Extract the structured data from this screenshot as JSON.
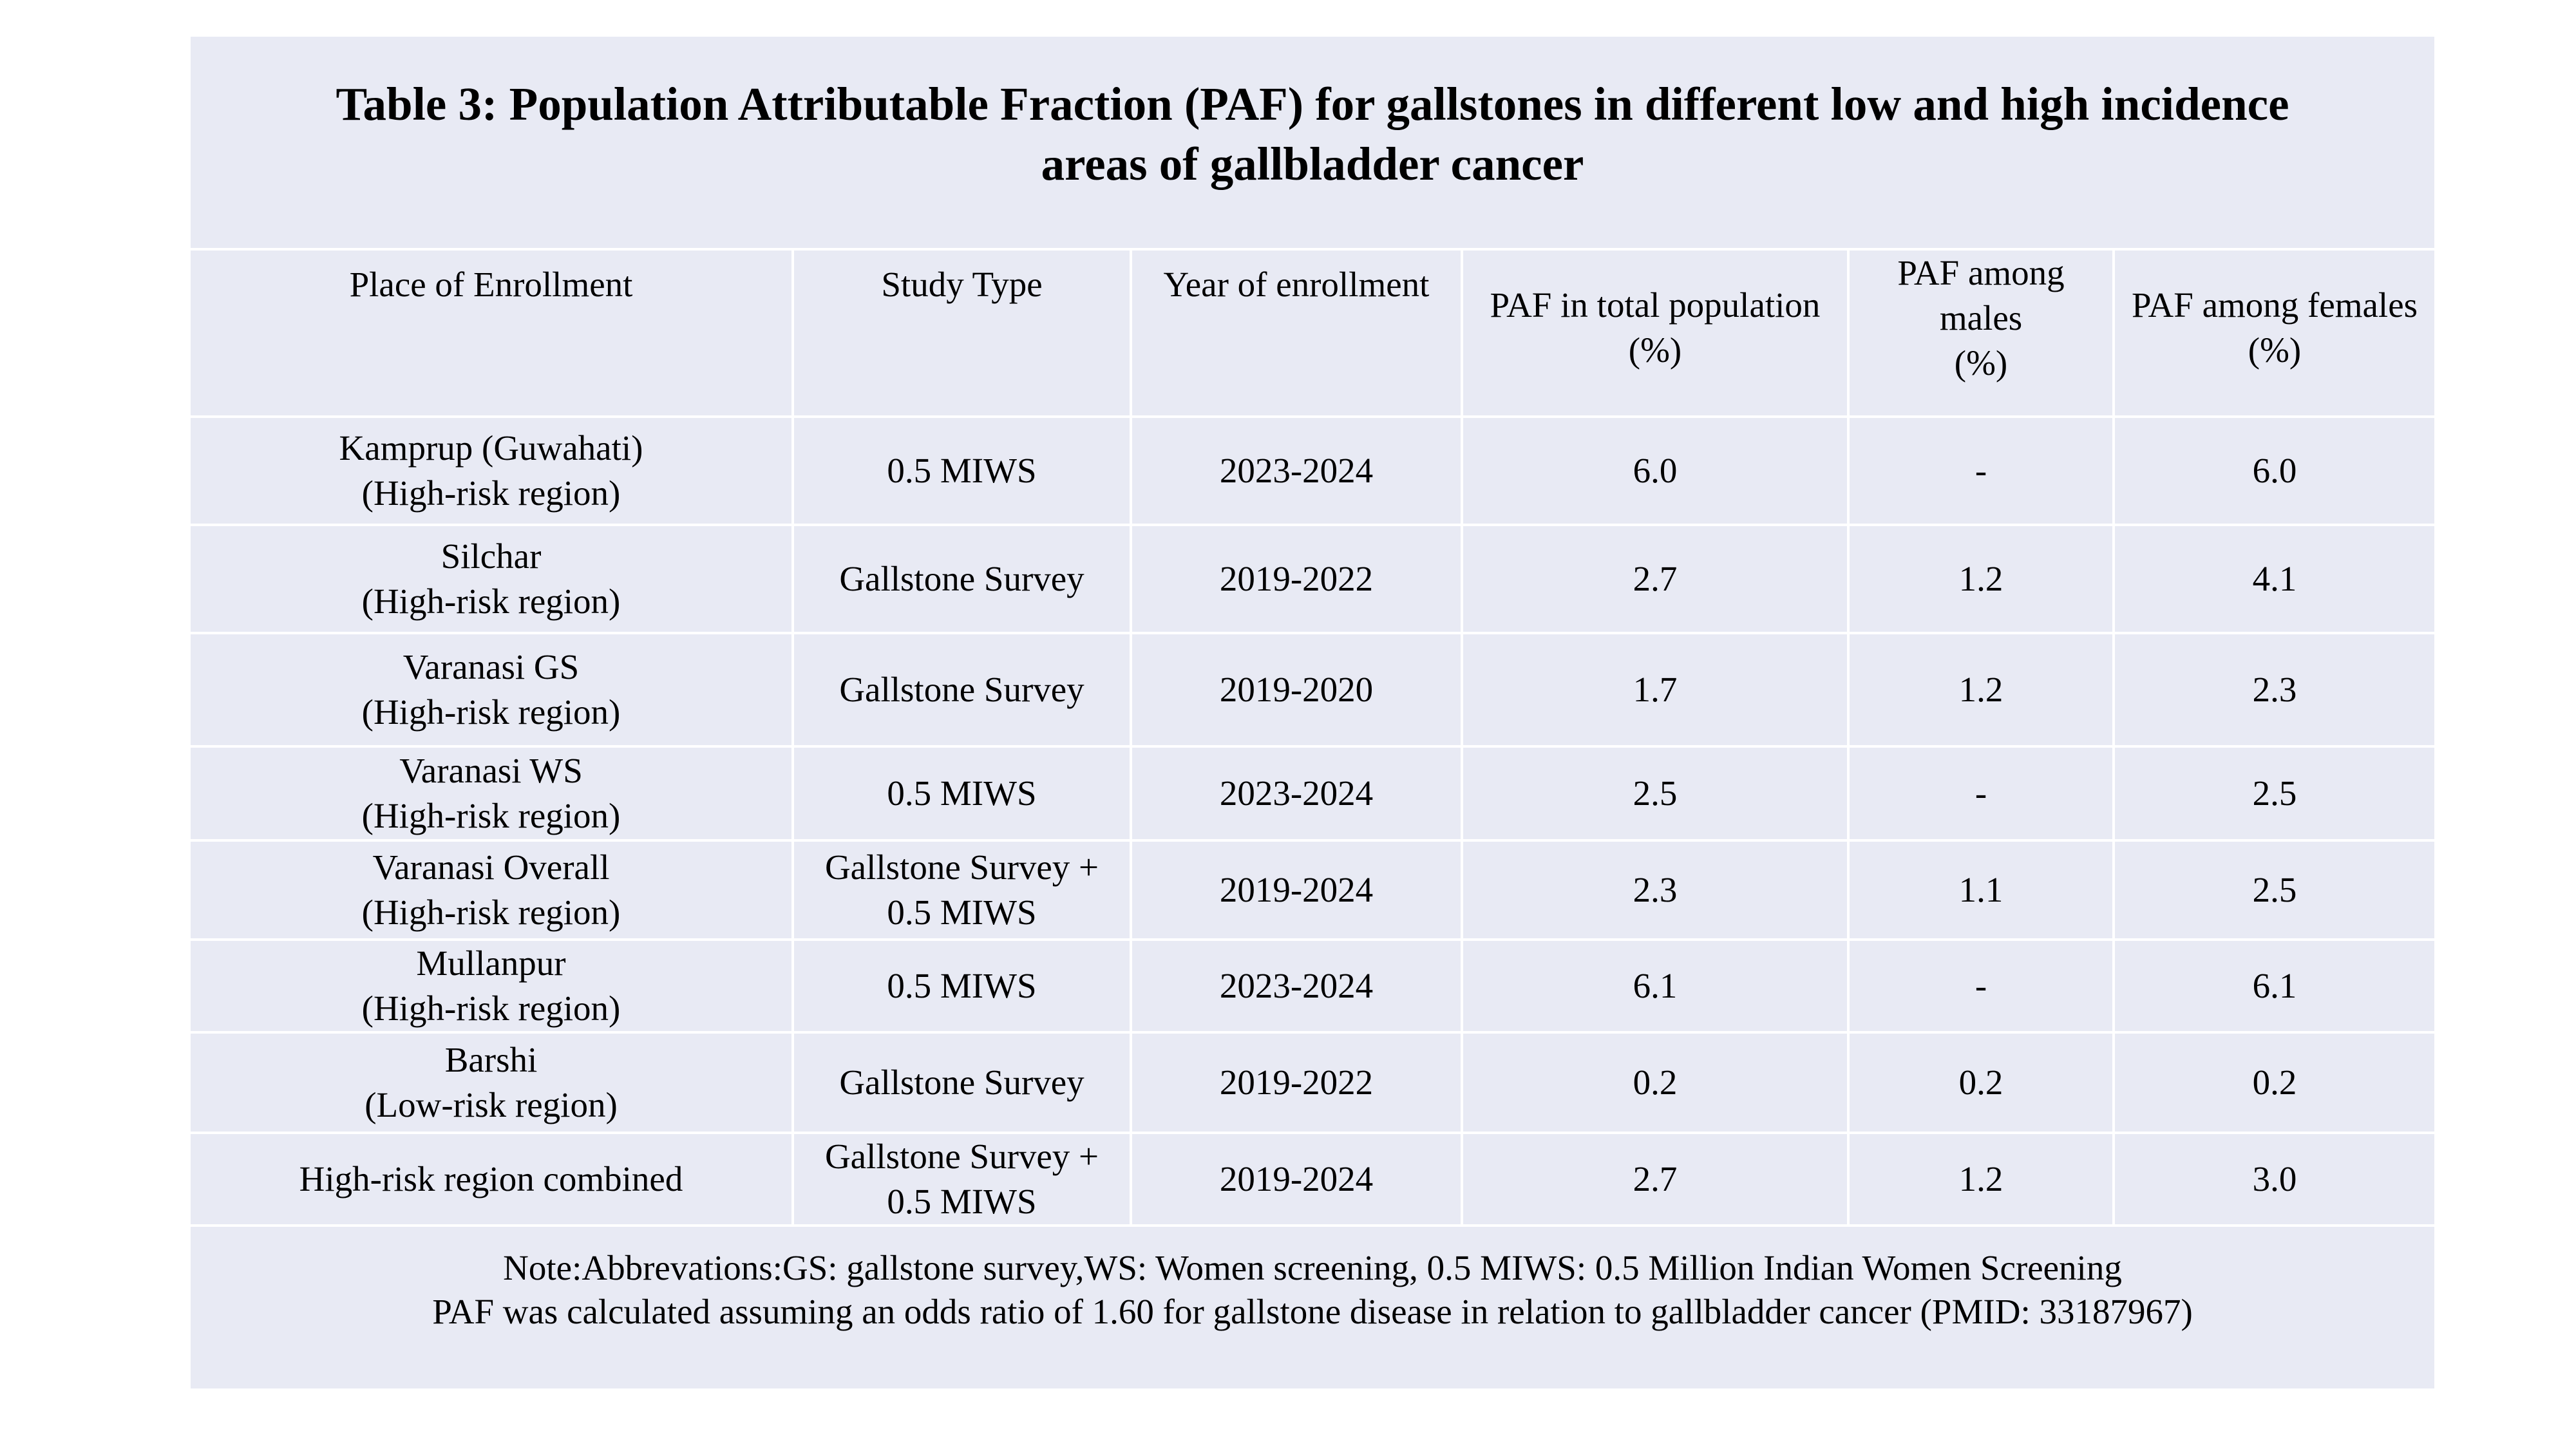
{
  "title": {
    "line1": "Table 3:  Population Attributable Fraction (PAF) for gallstones in different low and high incidence",
    "line2": "areas of gallbladder cancer"
  },
  "headers": {
    "place": "Place of Enrollment",
    "study_type": "Study Type",
    "year": "Year of enrollment",
    "paf_total": [
      "PAF in total population",
      "(%)"
    ],
    "paf_males": [
      "PAF among",
      "males",
      "(%)"
    ],
    "paf_females": [
      "PAF among females",
      "(%)"
    ]
  },
  "rows": [
    {
      "place": [
        "Kamprup (Guwahati)",
        "(High-risk region)"
      ],
      "study_type": [
        "0.5 MIWS"
      ],
      "year": "2023-2024",
      "paf_total": "6.0",
      "paf_males": "-",
      "paf_females": "6.0"
    },
    {
      "place": [
        "Silchar",
        "(High-risk region)"
      ],
      "study_type": [
        "Gallstone Survey"
      ],
      "year": "2019-2022",
      "paf_total": "2.7",
      "paf_males": "1.2",
      "paf_females": "4.1"
    },
    {
      "place": [
        "Varanasi GS",
        "(High-risk region)"
      ],
      "study_type": [
        "Gallstone Survey"
      ],
      "year": "2019-2020",
      "paf_total": "1.7",
      "paf_males": "1.2",
      "paf_females": "2.3"
    },
    {
      "place": [
        "Varanasi WS",
        "(High-risk region)"
      ],
      "study_type": [
        "0.5 MIWS"
      ],
      "year": "2023-2024",
      "paf_total": "2.5",
      "paf_males": "-",
      "paf_females": "2.5"
    },
    {
      "place": [
        "Varanasi Overall",
        "(High-risk region)"
      ],
      "study_type": [
        "Gallstone Survey +",
        "0.5 MIWS"
      ],
      "year": "2019-2024",
      "paf_total": "2.3",
      "paf_males": "1.1",
      "paf_females": "2.5"
    },
    {
      "place": [
        "Mullanpur",
        "(High-risk region)"
      ],
      "study_type": [
        "0.5 MIWS"
      ],
      "year": "2023-2024",
      "paf_total": "6.1",
      "paf_males": "-",
      "paf_females": "6.1"
    },
    {
      "place": [
        "Barshi",
        "(Low-risk region)"
      ],
      "study_type": [
        "Gallstone Survey"
      ],
      "year": "2019-2022",
      "paf_total": "0.2",
      "paf_males": "0.2",
      "paf_females": "0.2"
    },
    {
      "place": [
        "High-risk region combined"
      ],
      "study_type": [
        "Gallstone Survey +",
        "0.5 MIWS"
      ],
      "year": "2019-2024",
      "paf_total": "2.7",
      "paf_males": "1.2",
      "paf_females": "3.0"
    }
  ],
  "note": {
    "line1": "Note:Abbrevations:GS: gallstone survey,WS: Women screening, 0.5 MIWS: 0.5 Million Indian Women Screening",
    "line2": "PAF was calculated assuming an odds ratio of 1.60 for gallstone disease in relation to gallbladder cancer (PMID: 33187967)"
  },
  "colors": {
    "panel_background": "#e8eaf4",
    "grid_lines": "#ffffff",
    "text": "#000000"
  }
}
